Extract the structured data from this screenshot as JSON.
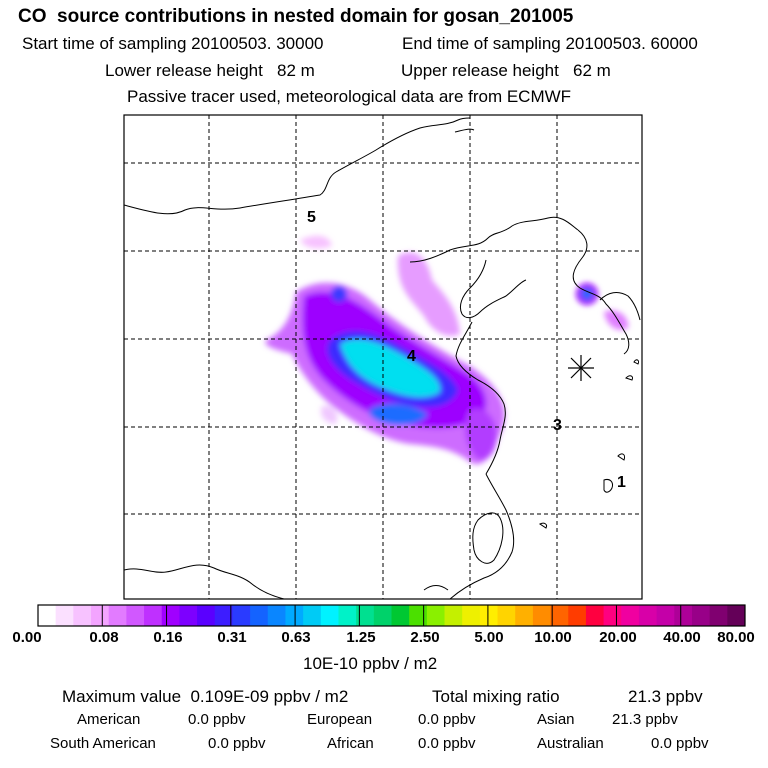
{
  "header": {
    "title": "CO  source contributions in nested domain for gosan_201005",
    "start_label": "Start time of sampling 20100503. 30000",
    "end_label": "End time of sampling 20100503. 60000",
    "lower_label": "Lower release height   82 m",
    "upper_label": "Upper release height   62 m",
    "tracer_label": "Passive tracer used, meteorological data are from ECMWF"
  },
  "map": {
    "region_labels": [
      "5",
      "4",
      "3",
      "1"
    ],
    "receptor_marker": "star-marker"
  },
  "colorbar": {
    "ticks": [
      "0.00",
      "0.08",
      "0.16",
      "0.31",
      "0.63",
      "1.25",
      "2.50",
      "5.00",
      "10.00",
      "20.00",
      "40.00",
      "80.00"
    ],
    "unit": "10E-10 ppbv / m2",
    "colors": [
      "#ffffff",
      "#fbe0ff",
      "#f7c2ff",
      "#f3a4ff",
      "#e27bff",
      "#d158ff",
      "#bf30ff",
      "#a000ff",
      "#7d00ff",
      "#5a00ff",
      "#3d1dff",
      "#2a3bff",
      "#1463ff",
      "#0a86ff",
      "#00aaff",
      "#00cbf5",
      "#00f2ff",
      "#00f2c8",
      "#00e090",
      "#00d26a",
      "#00c832",
      "#4be000",
      "#8af000",
      "#c4f000",
      "#eef000",
      "#ffee00",
      "#ffd400",
      "#ffb000",
      "#ff8c00",
      "#ff6400",
      "#ff3c00",
      "#ff0040",
      "#ff0080",
      "#f000a0",
      "#d800a8",
      "#c400a8",
      "#ae0098",
      "#980088",
      "#800070",
      "#640058"
    ]
  },
  "footer": {
    "max_label": "Maximum value  0.109E-09 ppbv / m2",
    "total_label": "Total mixing ratio",
    "total_value": "21.3 ppbv",
    "american_label": "American",
    "american_value": "0.0 ppbv",
    "european_label": "European",
    "european_value": "0.0 ppbv",
    "asian_label": "Asian",
    "asian_value": "21.3 ppbv",
    "south_american_label": "South American",
    "south_american_value": "0.0 ppbv",
    "african_label": "African",
    "african_value": "0.0 ppbv",
    "australian_label": "Australian",
    "australian_value": "0.0 ppbv"
  }
}
